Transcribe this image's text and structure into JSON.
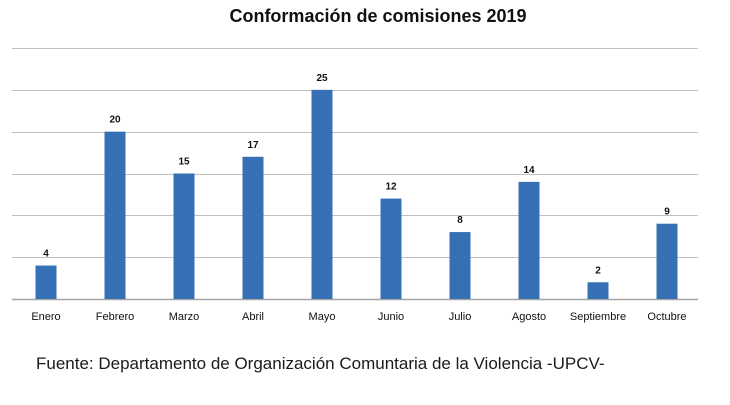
{
  "chart_data": {
    "type": "bar",
    "title": "Conformación de comisiones 2019",
    "xlabel": "",
    "ylabel": "",
    "categories": [
      "Enero",
      "Febrero",
      "Marzo",
      "Abril",
      "Mayo",
      "Junio",
      "Julio",
      "Agosto",
      "Septiembre",
      "Octubre"
    ],
    "values": [
      4,
      20,
      15,
      17,
      25,
      12,
      8,
      14,
      2,
      9
    ],
    "ylim": [
      0,
      30
    ],
    "grid": true,
    "legend": "none",
    "bar_color": "#3470B3",
    "grid_color": "#BFBFBF"
  },
  "footer": {
    "source": "Fuente: Departamento de Organización Comuntaria de la Violencia -UPCV-"
  }
}
